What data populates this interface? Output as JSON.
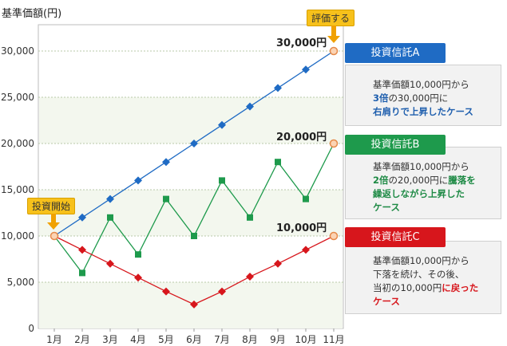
{
  "chart_data": {
    "type": "line",
    "ylabel": "基準価額(円)",
    "categories": [
      "1月",
      "2月",
      "3月",
      "4月",
      "5月",
      "6月",
      "7月",
      "8月",
      "9月",
      "10月",
      "11月"
    ],
    "ylim": [
      0,
      30000
    ],
    "yticks": [
      0,
      5000,
      10000,
      15000,
      20000,
      25000,
      30000
    ],
    "ytick_labels": [
      "0",
      "5,000",
      "10,000",
      "15,000",
      "20,000",
      "25,000",
      "30,000"
    ],
    "grid": true,
    "series": [
      {
        "name": "投資信託A",
        "color": "#1f6bc4",
        "marker": "diamond",
        "values": [
          10000,
          12000,
          14000,
          16000,
          18000,
          20000,
          22000,
          24000,
          26000,
          28000,
          30000
        ]
      },
      {
        "name": "投資信託B",
        "color": "#1e9a4c",
        "marker": "square",
        "values": [
          10000,
          6000,
          12000,
          8000,
          14000,
          10000,
          16000,
          12000,
          18000,
          14000,
          20000
        ]
      },
      {
        "name": "投資信託C",
        "color": "#d7161c",
        "marker": "diamond",
        "values": [
          10000,
          8500,
          7000,
          5500,
          4000,
          2600,
          4000,
          5600,
          7000,
          8500,
          10000
        ]
      }
    ],
    "end_labels": [
      "30,000円",
      "20,000円",
      "10,000円"
    ],
    "annotations": {
      "start": "投資開始",
      "evaluate": "評価する"
    }
  },
  "panels": {
    "a": {
      "title": "投資信託A",
      "line1": "基準価額10,000円から",
      "line2_hl": "3倍",
      "line2_rest": "の30,000円に",
      "line3_hl": "右肩りで上昇したケース"
    },
    "b": {
      "title": "投資信託B",
      "line1": "基準価額10,000円から",
      "line2_hl1": "2倍",
      "line2_mid": "の20,000円に",
      "line2_hl2": "騰落を",
      "line3_hl": "繰返しながら上昇した",
      "line4_hl": "ケース"
    },
    "c": {
      "title": "投資信託C",
      "line1": "基準価額10,000円から",
      "line2": "下落を続け、その後、",
      "line3_pre": "当初の10,000円",
      "line3_hl": "に戻った",
      "line4_hl": "ケース"
    }
  }
}
